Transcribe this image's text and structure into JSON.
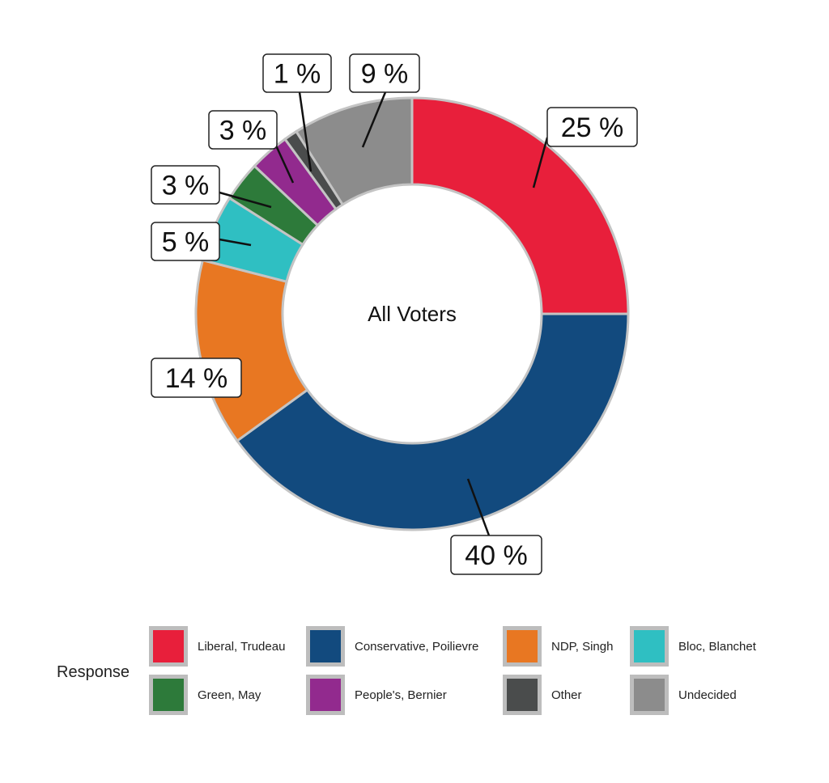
{
  "chart_data": {
    "type": "pie",
    "subtype": "donut",
    "center_label": "All Voters",
    "legend_title": "Response",
    "legend_placement": "bottom",
    "categories": [
      "Liberal, Trudeau",
      "Conservative, Poilievre",
      "NDP, Singh",
      "Bloc, Blanchet",
      "Green, May",
      "People's, Bernier",
      "Other",
      "Undecided"
    ],
    "values": [
      25,
      40,
      14,
      5,
      3,
      3,
      1,
      9
    ],
    "labels": [
      "25 %",
      "40 %",
      "14 %",
      "5 %",
      "3 %",
      "3 %",
      "1 %",
      "9 %"
    ],
    "colors": [
      "#E81F3B",
      "#124A7E",
      "#E87722",
      "#2FBFC2",
      "#2D7A3A",
      "#922A8E",
      "#4A4C4C",
      "#8C8C8C"
    ]
  }
}
